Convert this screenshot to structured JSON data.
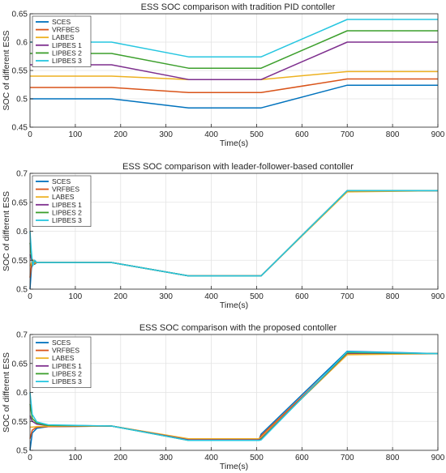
{
  "chart_data": [
    {
      "type": "line",
      "title": "ESS SOC comparison with tradition PID contoller",
      "xlabel": "Time(s)",
      "ylabel": "SOC of different ESS",
      "xlim": [
        0,
        900
      ],
      "ylim": [
        0.45,
        0.65
      ],
      "xticks": [
        0,
        100,
        200,
        300,
        400,
        500,
        600,
        700,
        800,
        900
      ],
      "yticks": [
        0.45,
        0.5,
        0.55,
        0.6,
        0.65
      ],
      "ytick_labels": [
        "0.45",
        "0.5",
        "0.55",
        "0.6",
        "0.65"
      ],
      "grid": true,
      "legend_position": "top-left",
      "series": [
        {
          "name": "SCES",
          "color": "#0072BD",
          "x": [
            0,
            180,
            350,
            510,
            700,
            900
          ],
          "y": [
            0.5,
            0.5,
            0.484,
            0.484,
            0.524,
            0.524
          ]
        },
        {
          "name": "VRFBES",
          "color": "#D95319",
          "x": [
            0,
            180,
            350,
            510,
            700,
            900
          ],
          "y": [
            0.52,
            0.52,
            0.511,
            0.511,
            0.535,
            0.535
          ]
        },
        {
          "name": "LABES",
          "color": "#EDB120",
          "x": [
            0,
            180,
            350,
            510,
            700,
            900
          ],
          "y": [
            0.54,
            0.54,
            0.534,
            0.534,
            0.548,
            0.548
          ]
        },
        {
          "name": "LIPBES 1",
          "color": "#7E2F8E",
          "x": [
            0,
            180,
            350,
            510,
            700,
            900
          ],
          "y": [
            0.56,
            0.56,
            0.534,
            0.534,
            0.6,
            0.6
          ]
        },
        {
          "name": "LIPBES 2",
          "color": "#3C9F2C",
          "x": [
            0,
            180,
            350,
            510,
            700,
            900
          ],
          "y": [
            0.58,
            0.58,
            0.554,
            0.554,
            0.62,
            0.62
          ]
        },
        {
          "name": "LIPBES 3",
          "color": "#26C6E0",
          "x": [
            0,
            180,
            350,
            510,
            700,
            900
          ],
          "y": [
            0.6,
            0.6,
            0.574,
            0.574,
            0.64,
            0.64
          ]
        }
      ]
    },
    {
      "type": "line",
      "title": "ESS SOC comparison with leader-follower-based contoller",
      "xlabel": "Time(s)",
      "ylabel": "SOC of different ESS",
      "xlim": [
        0,
        900
      ],
      "ylim": [
        0.5,
        0.7
      ],
      "xticks": [
        0,
        100,
        200,
        300,
        400,
        500,
        600,
        700,
        800,
        900
      ],
      "yticks": [
        0.5,
        0.55,
        0.6,
        0.65,
        0.7
      ],
      "ytick_labels": [
        "0.5",
        "0.55",
        "0.6",
        "0.65",
        "0.7"
      ],
      "grid": true,
      "legend_position": "top-left",
      "series": [
        {
          "name": "SCES",
          "color": "#0072BD",
          "x": [
            0,
            3,
            6,
            10,
            15,
            30,
            180,
            350,
            510,
            700,
            900
          ],
          "y": [
            0.5,
            0.535,
            0.548,
            0.543,
            0.546,
            0.546,
            0.546,
            0.523,
            0.523,
            0.67,
            0.67
          ]
        },
        {
          "name": "VRFBES",
          "color": "#D95319",
          "x": [
            0,
            3,
            6,
            10,
            15,
            30,
            180,
            350,
            510,
            700,
            900
          ],
          "y": [
            0.52,
            0.54,
            0.551,
            0.544,
            0.546,
            0.546,
            0.546,
            0.523,
            0.523,
            0.669,
            0.67
          ]
        },
        {
          "name": "LABES",
          "color": "#EDB120",
          "x": [
            0,
            3,
            6,
            10,
            15,
            30,
            180,
            350,
            510,
            700,
            900
          ],
          "y": [
            0.54,
            0.545,
            0.55,
            0.545,
            0.546,
            0.546,
            0.546,
            0.523,
            0.523,
            0.668,
            0.67
          ]
        },
        {
          "name": "LIPBES 1",
          "color": "#7E2F8E",
          "x": [
            0,
            3,
            6,
            10,
            15,
            30,
            180,
            350,
            510,
            700,
            900
          ],
          "y": [
            0.56,
            0.552,
            0.543,
            0.548,
            0.546,
            0.546,
            0.546,
            0.523,
            0.523,
            0.67,
            0.67
          ]
        },
        {
          "name": "LIPBES 2",
          "color": "#3C9F2C",
          "x": [
            0,
            3,
            6,
            10,
            15,
            30,
            180,
            350,
            510,
            700,
            900
          ],
          "y": [
            0.58,
            0.558,
            0.541,
            0.549,
            0.546,
            0.546,
            0.546,
            0.523,
            0.523,
            0.67,
            0.67
          ]
        },
        {
          "name": "LIPBES 3",
          "color": "#26C6E0",
          "x": [
            0,
            3,
            6,
            10,
            15,
            30,
            180,
            350,
            510,
            700,
            900
          ],
          "y": [
            0.6,
            0.565,
            0.54,
            0.55,
            0.546,
            0.546,
            0.546,
            0.523,
            0.523,
            0.67,
            0.67
          ]
        }
      ]
    },
    {
      "type": "line",
      "title": "ESS SOC comparison with the proposed contoller",
      "xlabel": "Time(s)",
      "ylabel": "SOC of different ESS",
      "xlim": [
        0,
        900
      ],
      "ylim": [
        0.5,
        0.7
      ],
      "xticks": [
        0,
        100,
        200,
        300,
        400,
        500,
        600,
        700,
        800,
        900
      ],
      "yticks": [
        0.5,
        0.55,
        0.6,
        0.65,
        0.7
      ],
      "ytick_labels": [
        "0.5",
        "0.55",
        "0.6",
        "0.65",
        "0.7"
      ],
      "grid": true,
      "legend_position": "top-left",
      "series": [
        {
          "name": "SCES",
          "color": "#0072BD",
          "x": [
            0,
            5,
            15,
            40,
            180,
            350,
            505,
            510,
            700,
            900
          ],
          "y": [
            0.5,
            0.53,
            0.538,
            0.541,
            0.542,
            0.518,
            0.518,
            0.528,
            0.671,
            0.667
          ]
        },
        {
          "name": "VRFBES",
          "color": "#D95319",
          "x": [
            0,
            5,
            15,
            40,
            180,
            350,
            505,
            510,
            700,
            900
          ],
          "y": [
            0.52,
            0.535,
            0.54,
            0.541,
            0.542,
            0.519,
            0.519,
            0.525,
            0.667,
            0.667
          ]
        },
        {
          "name": "LABES",
          "color": "#EDB120",
          "x": [
            0,
            5,
            15,
            40,
            180,
            350,
            505,
            510,
            700,
            900
          ],
          "y": [
            0.54,
            0.54,
            0.541,
            0.542,
            0.542,
            0.52,
            0.52,
            0.522,
            0.665,
            0.667
          ]
        },
        {
          "name": "LIPBES 1",
          "color": "#7E2F8E",
          "x": [
            0,
            5,
            15,
            40,
            180,
            350,
            505,
            510,
            700,
            900
          ],
          "y": [
            0.56,
            0.55,
            0.545,
            0.543,
            0.542,
            0.518,
            0.518,
            0.52,
            0.668,
            0.667
          ]
        },
        {
          "name": "LIPBES 2",
          "color": "#3C9F2C",
          "x": [
            0,
            5,
            15,
            40,
            180,
            350,
            505,
            510,
            700,
            900
          ],
          "y": [
            0.58,
            0.555,
            0.547,
            0.543,
            0.542,
            0.517,
            0.517,
            0.519,
            0.669,
            0.667
          ]
        },
        {
          "name": "LIPBES 3",
          "color": "#26C6E0",
          "x": [
            0,
            5,
            15,
            40,
            180,
            350,
            505,
            510,
            700,
            900
          ],
          "y": [
            0.6,
            0.562,
            0.549,
            0.544,
            0.542,
            0.517,
            0.517,
            0.518,
            0.67,
            0.667
          ]
        }
      ]
    }
  ]
}
